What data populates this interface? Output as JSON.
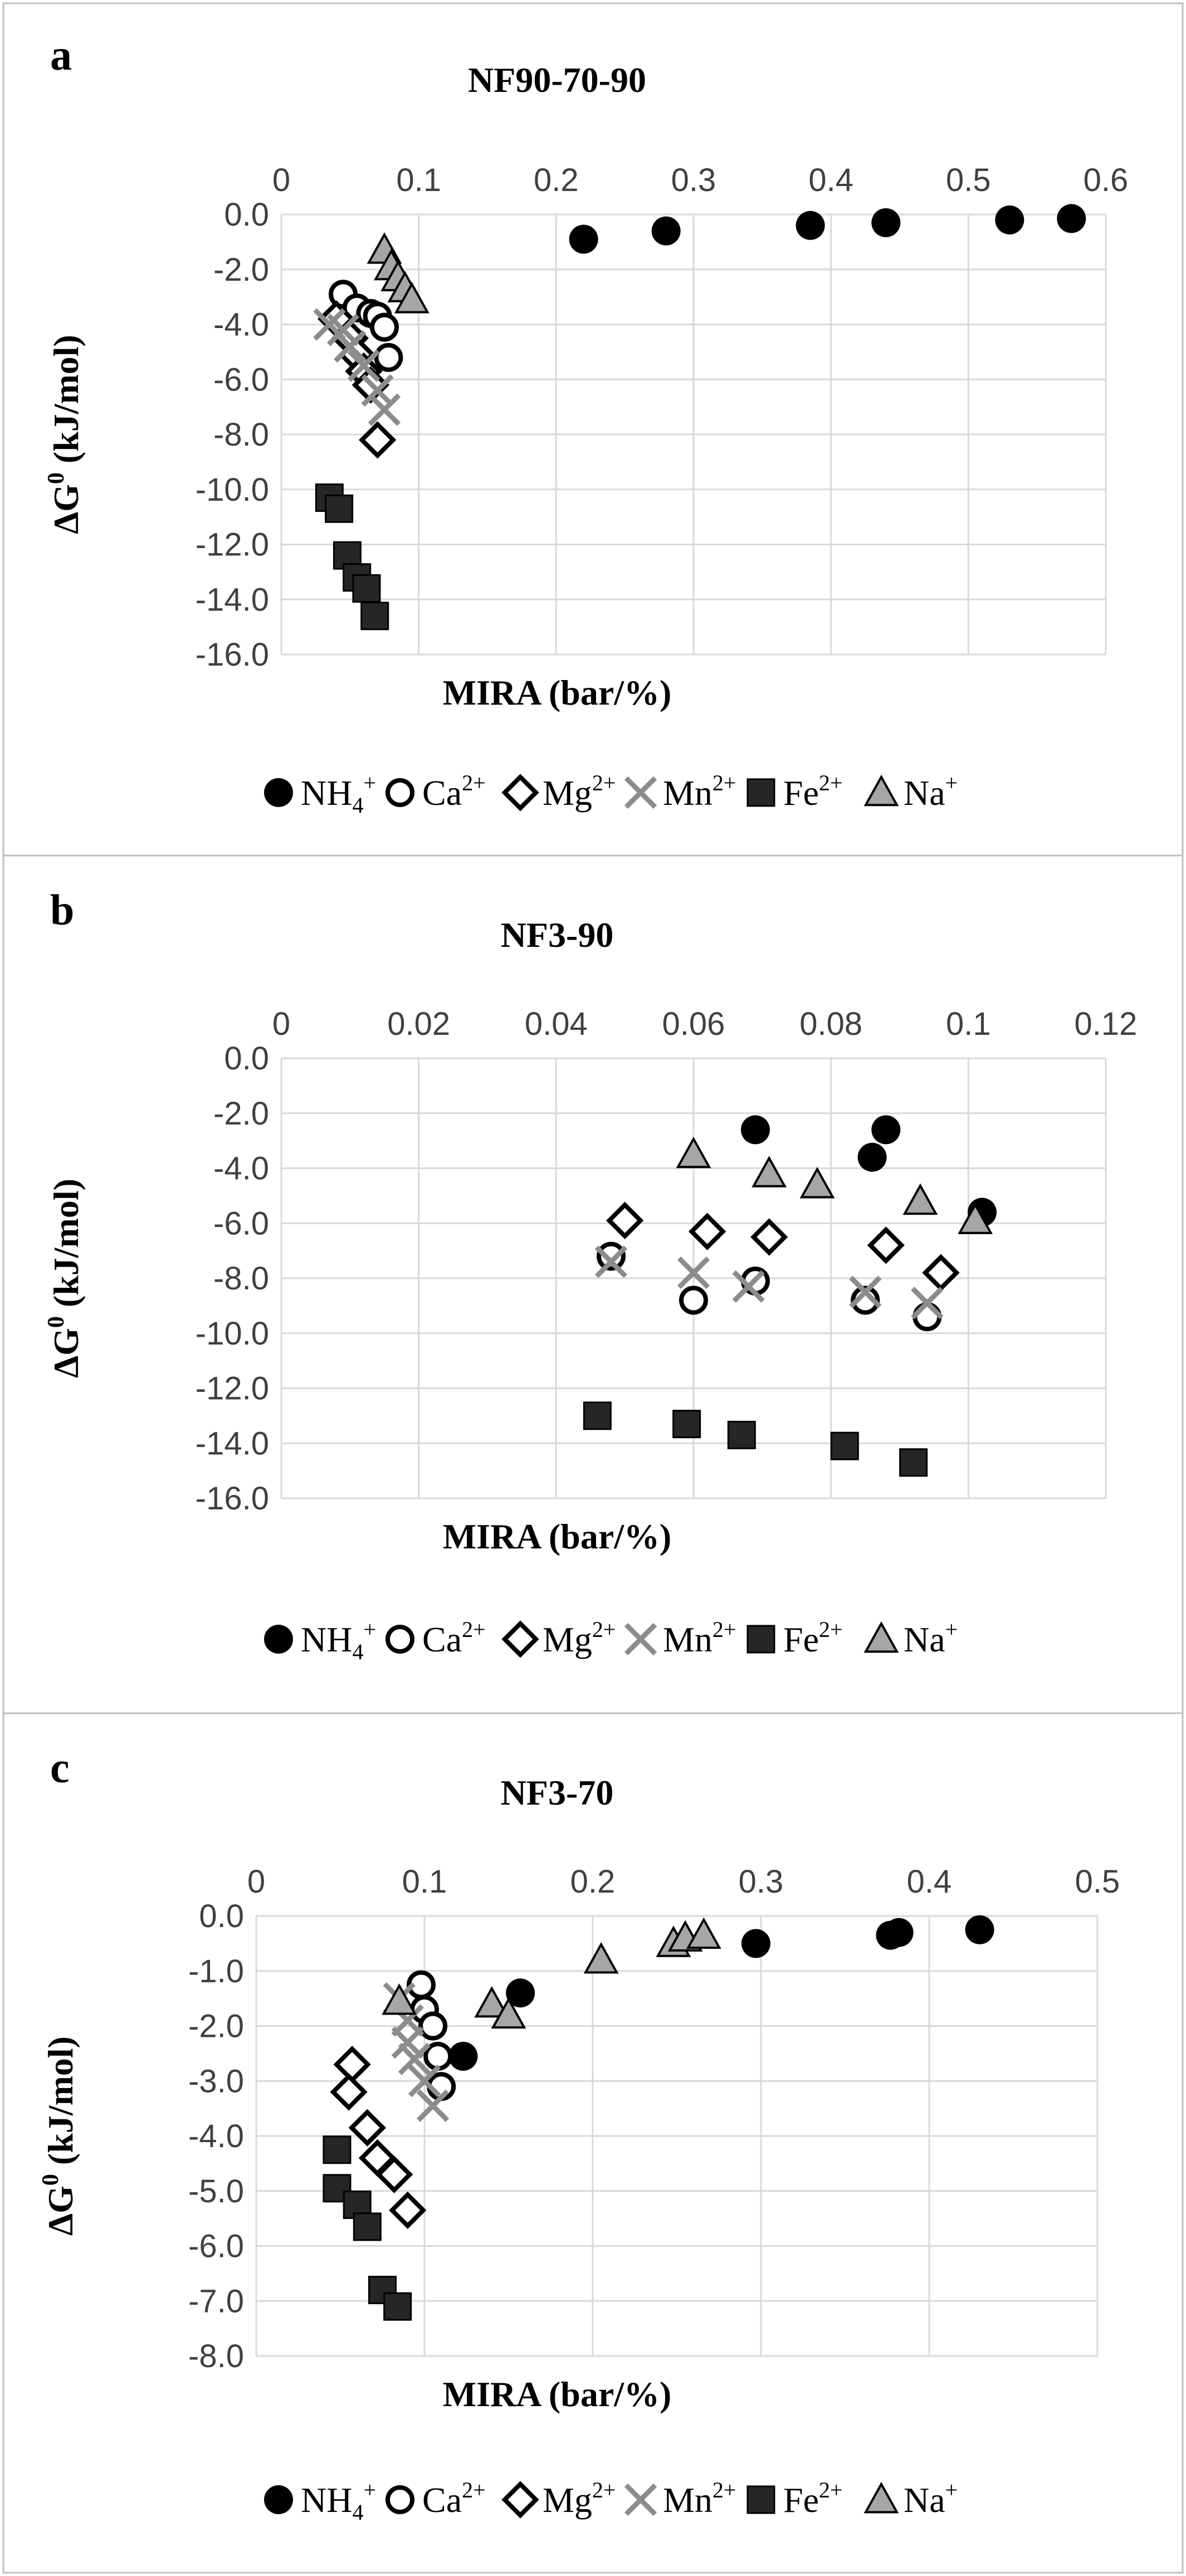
{
  "chart_data": [
    {
      "type": "scatter",
      "panel_label": "a",
      "title": "NF90-70-90",
      "xlabel": "MIRA (bar/%)",
      "ylabel": "ΔG",
      "ylabel_sup": "0",
      "ylabel_units": " (kJ/mol)",
      "xlim": [
        0,
        0.6
      ],
      "ylim": [
        -16,
        0
      ],
      "xticks": [
        "0",
        "0.1",
        "0.2",
        "0.3",
        "0.4",
        "0.5",
        "0.6"
      ],
      "yticks": [
        "0.0",
        "-2.0",
        "-4.0",
        "-6.0",
        "-8.0",
        "-10.0",
        "-12.0",
        "-14.0",
        "-16.0"
      ],
      "x_axis_position": "top",
      "grid": true,
      "series": [
        {
          "name": "NH4+",
          "label_base": "NH",
          "label_sub": "4",
          "label_sup": "+",
          "marker": "circle-filled",
          "points": [
            [
              0.22,
              -0.9
            ],
            [
              0.28,
              -0.6
            ],
            [
              0.385,
              -0.4
            ],
            [
              0.44,
              -0.3
            ],
            [
              0.53,
              -0.2
            ],
            [
              0.575,
              -0.15
            ]
          ]
        },
        {
          "name": "Ca2+",
          "label_base": "Ca",
          "label_sub": "",
          "label_sup": "2+",
          "marker": "circle-open",
          "points": [
            [
              0.045,
              -2.9
            ],
            [
              0.055,
              -3.4
            ],
            [
              0.065,
              -3.6
            ],
            [
              0.07,
              -3.7
            ],
            [
              0.075,
              -4.1
            ],
            [
              0.078,
              -5.2
            ]
          ]
        },
        {
          "name": "Mg2+",
          "label_base": "Mg",
          "label_sub": "",
          "label_sup": "2+",
          "marker": "diamond-open",
          "points": [
            [
              0.04,
              -3.8
            ],
            [
              0.05,
              -4.5
            ],
            [
              0.055,
              -5.1
            ],
            [
              0.06,
              -5.7
            ],
            [
              0.065,
              -6.2
            ],
            [
              0.07,
              -8.2
            ]
          ]
        },
        {
          "name": "Mn2+",
          "label_base": "Mn",
          "label_sub": "",
          "label_sup": "2+",
          "marker": "x",
          "points": [
            [
              0.035,
              -4.0
            ],
            [
              0.045,
              -4.2
            ],
            [
              0.05,
              -4.8
            ],
            [
              0.06,
              -5.5
            ],
            [
              0.07,
              -6.4
            ],
            [
              0.075,
              -7.1
            ]
          ]
        },
        {
          "name": "Fe2+",
          "label_base": "Fe",
          "label_sub": "",
          "label_sup": "2+",
          "marker": "square-filled",
          "points": [
            [
              0.035,
              -10.3
            ],
            [
              0.042,
              -10.7
            ],
            [
              0.048,
              -12.4
            ],
            [
              0.055,
              -13.2
            ],
            [
              0.062,
              -13.6
            ],
            [
              0.068,
              -14.6
            ]
          ]
        },
        {
          "name": "Na+",
          "label_base": "Na",
          "label_sub": "",
          "label_sup": "+",
          "marker": "triangle-gray",
          "points": [
            [
              0.075,
              -1.3
            ],
            [
              0.08,
              -1.9
            ],
            [
              0.085,
              -2.3
            ],
            [
              0.09,
              -2.7
            ],
            [
              0.095,
              -3.1
            ]
          ]
        }
      ]
    },
    {
      "type": "scatter",
      "panel_label": "b",
      "title": "NF3-90",
      "xlabel": "MIRA (bar/%)",
      "ylabel": "ΔG",
      "ylabel_sup": "0",
      "ylabel_units": " (kJ/mol)",
      "xlim": [
        0,
        0.12
      ],
      "ylim": [
        -16,
        0
      ],
      "xticks": [
        "0",
        "0.02",
        "0.04",
        "0.06",
        "0.08",
        "0.1",
        "0.12"
      ],
      "yticks": [
        "0.0",
        "-2.0",
        "-4.0",
        "-6.0",
        "-8.0",
        "-10.0",
        "-12.0",
        "-14.0",
        "-16.0"
      ],
      "x_axis_position": "top",
      "grid": true,
      "series": [
        {
          "name": "NH4+",
          "label_base": "NH",
          "label_sub": "4",
          "label_sup": "+",
          "marker": "circle-filled",
          "points": [
            [
              0.069,
              -2.6
            ],
            [
              0.086,
              -3.6
            ],
            [
              0.088,
              -2.6
            ],
            [
              0.102,
              -5.6
            ]
          ]
        },
        {
          "name": "Ca2+",
          "label_base": "Ca",
          "label_sub": "",
          "label_sup": "2+",
          "marker": "circle-open",
          "points": [
            [
              0.048,
              -7.2
            ],
            [
              0.06,
              -8.8
            ],
            [
              0.069,
              -8.1
            ],
            [
              0.085,
              -8.8
            ],
            [
              0.094,
              -9.4
            ]
          ]
        },
        {
          "name": "Mg2+",
          "label_base": "Mg",
          "label_sub": "",
          "label_sup": "2+",
          "marker": "diamond-open",
          "points": [
            [
              0.05,
              -5.9
            ],
            [
              0.062,
              -6.3
            ],
            [
              0.071,
              -6.5
            ],
            [
              0.088,
              -6.8
            ],
            [
              0.096,
              -7.8
            ]
          ]
        },
        {
          "name": "Mn2+",
          "label_base": "Mn",
          "label_sub": "",
          "label_sup": "2+",
          "marker": "x",
          "points": [
            [
              0.048,
              -7.4
            ],
            [
              0.06,
              -7.8
            ],
            [
              0.068,
              -8.3
            ],
            [
              0.085,
              -8.5
            ],
            [
              0.094,
              -8.9
            ]
          ]
        },
        {
          "name": "Fe2+",
          "label_base": "Fe",
          "label_sub": "",
          "label_sup": "2+",
          "marker": "square-filled",
          "points": [
            [
              0.046,
              -13.0
            ],
            [
              0.059,
              -13.3
            ],
            [
              0.067,
              -13.7
            ],
            [
              0.082,
              -14.1
            ],
            [
              0.092,
              -14.7
            ]
          ]
        },
        {
          "name": "Na+",
          "label_base": "Na",
          "label_sub": "",
          "label_sup": "+",
          "marker": "triangle-gray",
          "points": [
            [
              0.06,
              -3.5
            ],
            [
              0.071,
              -4.2
            ],
            [
              0.078,
              -4.6
            ],
            [
              0.093,
              -5.2
            ],
            [
              0.101,
              -5.9
            ]
          ]
        }
      ]
    },
    {
      "type": "scatter",
      "panel_label": "c",
      "title": "NF3-70",
      "xlabel": "MIRA (bar/%)",
      "ylabel": "ΔG",
      "ylabel_sup": "0",
      "ylabel_units": " (kJ/mol)",
      "xlim": [
        0,
        0.5
      ],
      "ylim": [
        -8,
        0
      ],
      "xticks": [
        "0",
        "0.1",
        "0.2",
        "0.3",
        "0.4",
        "0.5"
      ],
      "yticks": [
        "0.0",
        "-1.0",
        "-2.0",
        "-3.0",
        "-4.0",
        "-5.0",
        "-6.0",
        "-7.0",
        "-8.0"
      ],
      "x_axis_position": "top",
      "grid": true,
      "series": [
        {
          "name": "NH4+",
          "label_base": "NH",
          "label_sub": "4",
          "label_sup": "+",
          "marker": "circle-filled",
          "points": [
            [
              0.123,
              -2.55
            ],
            [
              0.157,
              -1.4
            ],
            [
              0.297,
              -0.5
            ],
            [
              0.377,
              -0.35
            ],
            [
              0.382,
              -0.3
            ],
            [
              0.43,
              -0.25
            ]
          ]
        },
        {
          "name": "Ca2+",
          "label_base": "Ca",
          "label_sub": "",
          "label_sup": "2+",
          "marker": "circle-open",
          "points": [
            [
              0.098,
              -1.25
            ],
            [
              0.1,
              -1.7
            ],
            [
              0.105,
              -2.0
            ],
            [
              0.108,
              -2.55
            ],
            [
              0.11,
              -3.1
            ]
          ]
        },
        {
          "name": "Mg2+",
          "label_base": "Mg",
          "label_sub": "",
          "label_sup": "2+",
          "marker": "diamond-open",
          "points": [
            [
              0.057,
              -2.7
            ],
            [
              0.055,
              -3.2
            ],
            [
              0.066,
              -3.85
            ],
            [
              0.072,
              -4.4
            ],
            [
              0.082,
              -4.7
            ],
            [
              0.09,
              -5.35
            ]
          ]
        },
        {
          "name": "Mn2+",
          "label_base": "Mn",
          "label_sub": "",
          "label_sup": "2+",
          "marker": "x",
          "points": [
            [
              0.085,
              -1.5
            ],
            [
              0.09,
              -1.9
            ],
            [
              0.09,
              -2.3
            ],
            [
              0.094,
              -2.6
            ],
            [
              0.1,
              -3.0
            ],
            [
              0.105,
              -3.45
            ]
          ]
        },
        {
          "name": "Fe2+",
          "label_base": "Fe",
          "label_sub": "",
          "label_sup": "2+",
          "marker": "square-filled",
          "points": [
            [
              0.048,
              -4.25
            ],
            [
              0.048,
              -4.95
            ],
            [
              0.06,
              -5.25
            ],
            [
              0.066,
              -5.65
            ],
            [
              0.075,
              -6.8
            ],
            [
              0.084,
              -7.1
            ]
          ]
        },
        {
          "name": "Na+",
          "label_base": "Na",
          "label_sub": "",
          "label_sup": "+",
          "marker": "triangle-gray",
          "points": [
            [
              0.085,
              -1.55
            ],
            [
              0.14,
              -1.6
            ],
            [
              0.15,
              -1.8
            ],
            [
              0.205,
              -0.8
            ],
            [
              0.248,
              -0.5
            ],
            [
              0.255,
              -0.4
            ],
            [
              0.266,
              -0.35
            ]
          ]
        }
      ]
    }
  ]
}
